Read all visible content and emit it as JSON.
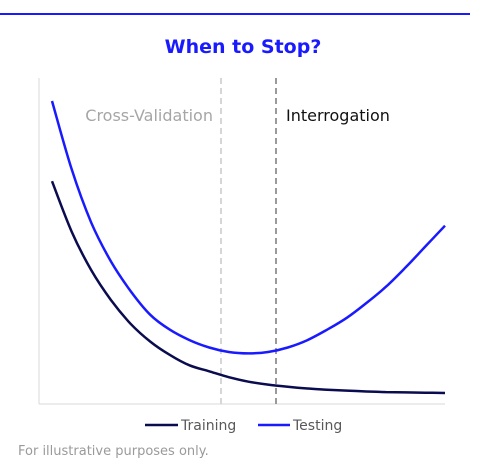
{
  "header": {
    "title": "When to Stop?"
  },
  "footnote": "For illustrative purposes only.",
  "colors": {
    "accent": "#1a1aff",
    "training": "#0b0b4f",
    "testing": "#1a1aff",
    "axis": "#d9d9d9",
    "cv_line": "#d6d6d6",
    "interrogation_line": "#9a9a9a",
    "cv_label": "#a6a6a6",
    "interrogation_label": "#111111"
  },
  "chart_data": {
    "type": "line",
    "title": "When to Stop?",
    "xlabel": "",
    "ylabel": "",
    "xlim": [
      0,
      10
    ],
    "ylim": [
      0,
      10
    ],
    "grid": false,
    "legend_position": "bottom",
    "x": [
      0,
      0.5,
      1,
      1.5,
      2,
      2.5,
      3,
      3.5,
      4,
      4.5,
      5,
      5.5,
      6,
      6.5,
      7,
      7.5,
      8,
      8.5,
      9,
      9.5,
      10
    ],
    "series": [
      {
        "name": "Training",
        "values": [
          7.3,
          5.6,
          4.3,
          3.3,
          2.5,
          1.9,
          1.45,
          1.1,
          0.9,
          0.7,
          0.55,
          0.45,
          0.38,
          0.32,
          0.28,
          0.25,
          0.22,
          0.2,
          0.19,
          0.18,
          0.17
        ]
      },
      {
        "name": "Testing",
        "values": [
          10.0,
          7.7,
          5.9,
          4.6,
          3.6,
          2.8,
          2.3,
          1.95,
          1.7,
          1.55,
          1.5,
          1.55,
          1.7,
          1.95,
          2.3,
          2.7,
          3.2,
          3.75,
          4.4,
          5.1,
          5.8
        ]
      }
    ],
    "annotations": [
      {
        "label": "Cross-Validation",
        "x": 4.3,
        "style": "dashed-light"
      },
      {
        "label": "Interrogation",
        "x": 5.7,
        "style": "dashed-dark"
      }
    ]
  }
}
